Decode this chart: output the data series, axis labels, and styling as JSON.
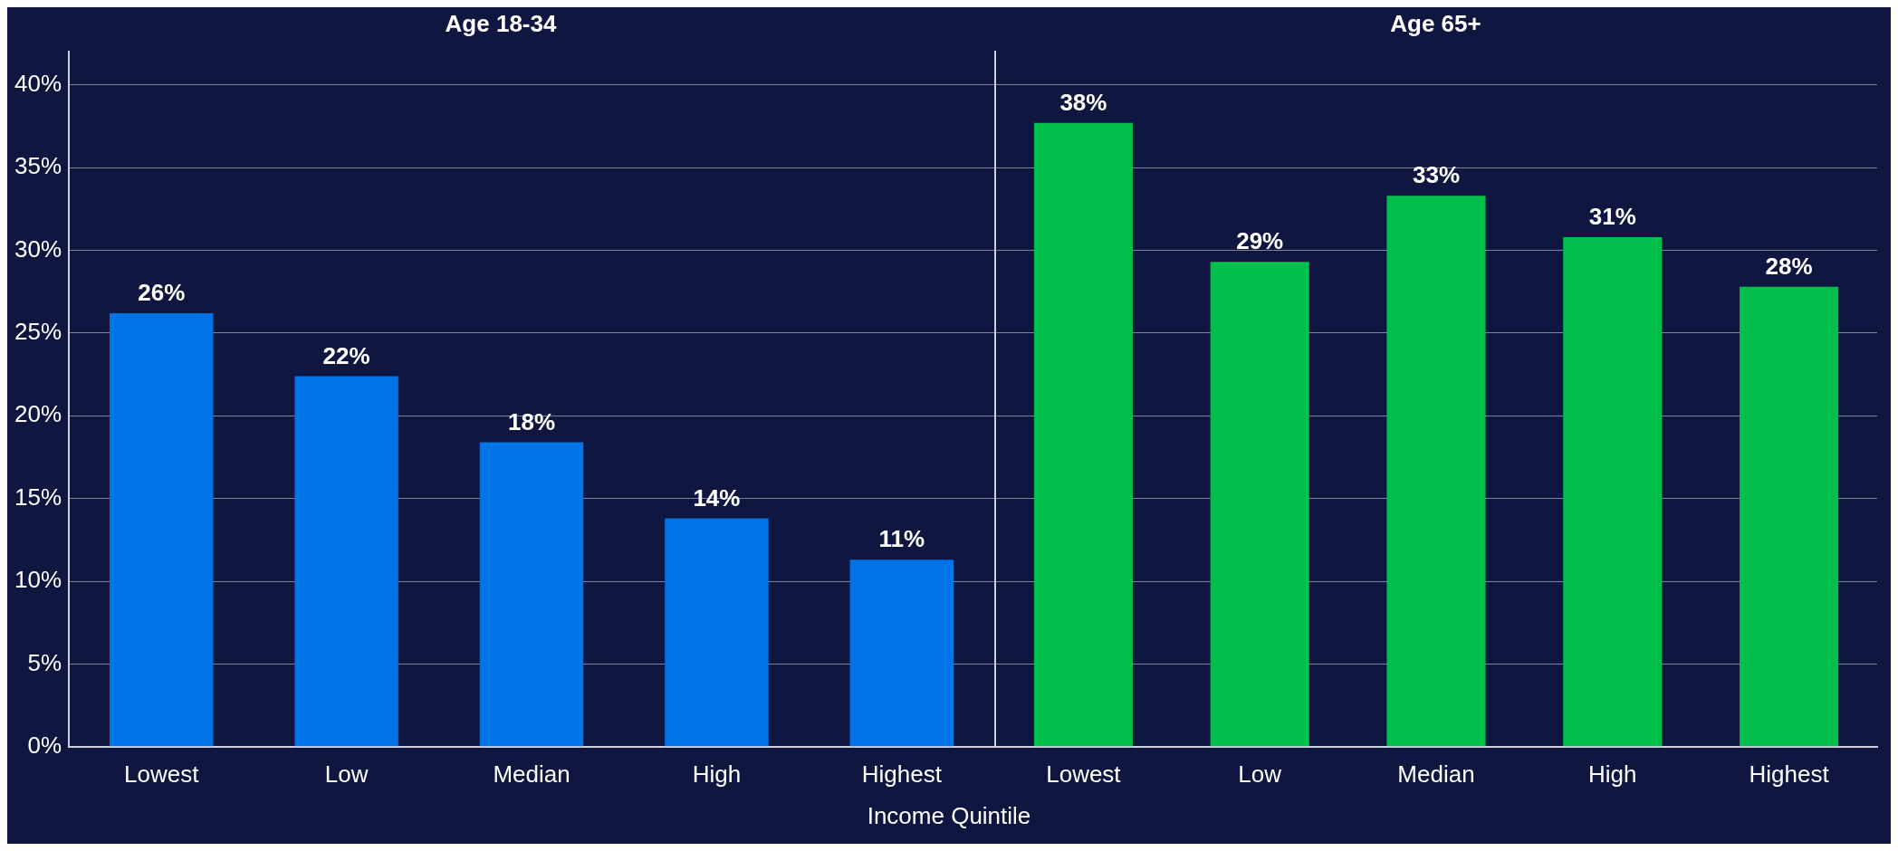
{
  "chart_data": [
    {
      "type": "bar",
      "title": "Age 18-34",
      "xlabel": "Income Quintile",
      "categories": [
        "Lowest",
        "Low",
        "Median",
        "High",
        "Highest"
      ],
      "values": [
        26.2,
        22.4,
        18.4,
        13.8,
        11.3
      ],
      "value_labels": [
        "26%",
        "22%",
        "18%",
        "14%",
        "11%"
      ],
      "color": "#0073e6",
      "ylim": [
        0,
        42
      ],
      "yticks": [
        {
          "value": 0,
          "label": "0%"
        },
        {
          "value": 5,
          "label": "5%"
        },
        {
          "value": 10,
          "label": "10%"
        },
        {
          "value": 15,
          "label": "15%"
        },
        {
          "value": 20,
          "label": "20%"
        },
        {
          "value": 25,
          "label": "25%"
        },
        {
          "value": 30,
          "label": "30%"
        },
        {
          "value": 35,
          "label": "35%"
        },
        {
          "value": 40,
          "label": "40%"
        }
      ],
      "grid": "y"
    },
    {
      "type": "bar",
      "title": "Age 65+",
      "categories": [
        "Lowest",
        "Low",
        "Median",
        "High",
        "Highest"
      ],
      "values": [
        37.7,
        29.3,
        33.3,
        30.8,
        27.8
      ],
      "value_labels": [
        "38%",
        "29%",
        "33%",
        "31%",
        "28%"
      ],
      "color": "#00c04b",
      "ylim": [
        0,
        42
      ],
      "yticks": [
        0,
        5,
        10,
        15,
        20,
        25,
        30,
        35,
        40
      ],
      "grid": "y",
      "tick_labels": "x"
    }
  ]
}
